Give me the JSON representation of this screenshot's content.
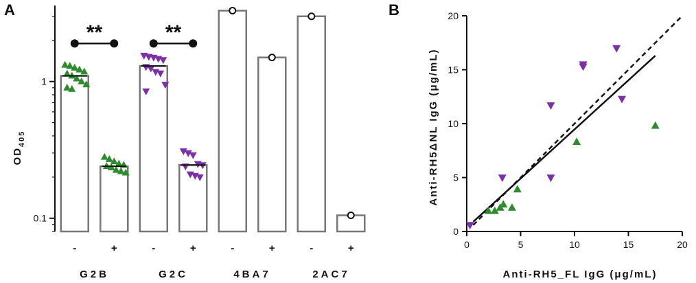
{
  "chart_data": [
    {
      "panel": "A",
      "type": "bar",
      "ylabel": "OD",
      "ylabel_sub": "405",
      "yscale": "log",
      "ylim": [
        0.08,
        3.6
      ],
      "yticks": [
        {
          "value": 1,
          "label": "1"
        },
        {
          "value": 0.1,
          "label": "0.1"
        }
      ],
      "categories": [
        {
          "group": "G2B",
          "sign": "-",
          "value": 1.1,
          "points_color": "#2e8b2e",
          "marker": "triangle-up",
          "points": [
            1.32,
            1.3,
            1.26,
            1.22,
            1.18,
            1.14,
            1.1,
            1.05,
            1.0,
            0.95,
            0.9,
            0.88
          ]
        },
        {
          "group": "G2B",
          "sign": "+",
          "value": 0.24,
          "points_color": "#2e8b2e",
          "marker": "triangle-up",
          "points": [
            0.28,
            0.27,
            0.26,
            0.25,
            0.245,
            0.24,
            0.235,
            0.225,
            0.22,
            0.215
          ]
        },
        {
          "group": "G2C",
          "sign": "-",
          "value": 1.3,
          "points_color": "#7b2fa8",
          "marker": "triangle-down",
          "points": [
            1.55,
            1.52,
            1.5,
            1.47,
            1.44,
            1.28,
            1.25,
            1.18,
            1.15,
            0.95,
            0.85
          ]
        },
        {
          "group": "G2C",
          "sign": "+",
          "value": 0.245,
          "points_color": "#7b2fa8",
          "marker": "triangle-down",
          "points": [
            0.31,
            0.3,
            0.29,
            0.25,
            0.245,
            0.24,
            0.21,
            0.205,
            0.2
          ]
        },
        {
          "group": "4BA7",
          "sign": "-",
          "value": 3.3,
          "marker": "circle",
          "points": [
            3.3
          ]
        },
        {
          "group": "4BA7",
          "sign": "+",
          "value": 1.5,
          "marker": "circle",
          "points": [
            1.5
          ]
        },
        {
          "group": "2AC7",
          "sign": "-",
          "value": 3.0,
          "marker": "circle",
          "points": [
            3.0
          ]
        },
        {
          "group": "2AC7",
          "sign": "+",
          "value": 0.105,
          "marker": "circle",
          "points": [
            0.105
          ]
        }
      ],
      "group_labels": [
        "G2B",
        "G2C",
        "4BA7",
        "2AC7"
      ],
      "significance": [
        {
          "group": "G2B",
          "label": "**",
          "y": 1.9
        },
        {
          "group": "G2C",
          "label": "**",
          "y": 1.9
        }
      ]
    },
    {
      "panel": "B",
      "type": "scatter",
      "xlabel": "Anti-RH5_FL IgG (μg/mL)",
      "ylabel": "Anti-RH5ΔNL IgG (μg/mL)",
      "xlim": [
        0,
        20
      ],
      "ylim": [
        0,
        20
      ],
      "xticks": [
        0,
        5,
        10,
        15,
        20
      ],
      "yticks": [
        0,
        5,
        10,
        15,
        20
      ],
      "tick_labels_x": [
        "0",
        "5",
        "10",
        "15",
        "20"
      ],
      "tick_labels_y": [
        "0",
        "5",
        "10",
        "15",
        "20"
      ],
      "series": [
        {
          "color": "#7b2fa8",
          "marker": "triangle-down",
          "points": [
            [
              0.3,
              0.6
            ],
            [
              3.3,
              5.0
            ],
            [
              7.8,
              5.0
            ],
            [
              7.8,
              11.7
            ],
            [
              10.8,
              15.3
            ],
            [
              10.8,
              15.5
            ],
            [
              13.9,
              17.0
            ],
            [
              14.4,
              12.3
            ]
          ]
        },
        {
          "color": "#2e8b2e",
          "marker": "triangle-up",
          "points": [
            [
              2.0,
              1.9
            ],
            [
              2.6,
              1.9
            ],
            [
              3.1,
              2.2
            ],
            [
              3.4,
              2.5
            ],
            [
              4.2,
              2.2
            ],
            [
              4.7,
              3.9
            ],
            [
              10.2,
              8.3
            ],
            [
              17.5,
              9.8
            ]
          ]
        }
      ],
      "lines": [
        {
          "style": "solid",
          "from": [
            0.6,
            0.9
          ],
          "to": [
            17.5,
            16.3
          ]
        },
        {
          "style": "dashed",
          "from": [
            0.6,
            0.6
          ],
          "to": [
            20,
            20
          ]
        }
      ]
    }
  ]
}
